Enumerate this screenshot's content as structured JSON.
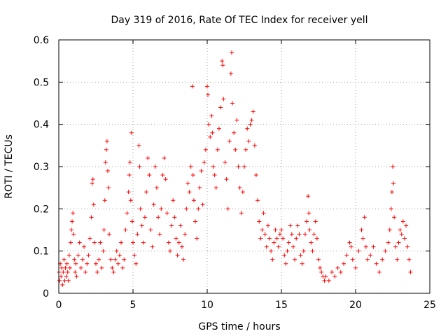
{
  "chart_data": {
    "type": "scatter",
    "title": "Day 319 of 2016, Rate Of TEC Index for receiver yell",
    "xlabel": "GPS time / hours",
    "ylabel": "ROTI / TECUs",
    "xlim": [
      0,
      25
    ],
    "ylim": [
      0,
      0.6
    ],
    "xticks": [
      0,
      5,
      10,
      15,
      20,
      25
    ],
    "yticks": [
      0,
      0.1,
      0.2,
      0.3,
      0.4,
      0.5,
      0.6
    ],
    "xtick_labels": [
      "0",
      "5",
      "10",
      "15",
      "20",
      "25"
    ],
    "ytick_labels": [
      "0",
      "0.1",
      "0.2",
      "0.3",
      "0.4",
      "0.5",
      "0.6"
    ],
    "grid": true,
    "marker": "+",
    "color": "#ff0000",
    "series": [
      {
        "name": "ROTI",
        "points": [
          [
            0.0,
            0.05
          ],
          [
            0.05,
            0.03
          ],
          [
            0.1,
            0.07
          ],
          [
            0.15,
            0.04
          ],
          [
            0.2,
            0.06
          ],
          [
            0.25,
            0.02
          ],
          [
            0.3,
            0.05
          ],
          [
            0.35,
            0.08
          ],
          [
            0.4,
            0.03
          ],
          [
            0.45,
            0.06
          ],
          [
            0.5,
            0.04
          ],
          [
            0.55,
            0.07
          ],
          [
            0.6,
            0.05
          ],
          [
            0.65,
            0.03
          ],
          [
            0.7,
            0.09
          ],
          [
            0.75,
            0.06
          ],
          [
            0.8,
            0.12
          ],
          [
            0.85,
            0.15
          ],
          [
            0.9,
            0.17
          ],
          [
            0.95,
            0.19
          ],
          [
            1.0,
            0.14
          ],
          [
            1.05,
            0.08
          ],
          [
            1.1,
            0.05
          ],
          [
            1.15,
            0.07
          ],
          [
            1.2,
            0.04
          ],
          [
            1.3,
            0.09
          ],
          [
            1.4,
            0.12
          ],
          [
            1.5,
            0.06
          ],
          [
            1.6,
            0.08
          ],
          [
            1.7,
            0.11
          ],
          [
            1.8,
            0.05
          ],
          [
            1.9,
            0.07
          ],
          [
            2.0,
            0.09
          ],
          [
            2.1,
            0.13
          ],
          [
            2.2,
            0.18
          ],
          [
            2.25,
            0.26
          ],
          [
            2.3,
            0.27
          ],
          [
            2.35,
            0.21
          ],
          [
            2.4,
            0.12
          ],
          [
            2.5,
            0.07
          ],
          [
            2.6,
            0.05
          ],
          [
            2.7,
            0.08
          ],
          [
            2.8,
            0.12
          ],
          [
            2.9,
            0.06
          ],
          [
            3.0,
            0.1
          ],
          [
            3.05,
            0.15
          ],
          [
            3.1,
            0.22
          ],
          [
            3.15,
            0.31
          ],
          [
            3.2,
            0.34
          ],
          [
            3.25,
            0.36
          ],
          [
            3.3,
            0.29
          ],
          [
            3.35,
            0.25
          ],
          [
            3.4,
            0.14
          ],
          [
            3.5,
            0.08
          ],
          [
            3.6,
            0.06
          ],
          [
            3.7,
            0.05
          ],
          [
            3.8,
            0.08
          ],
          [
            3.9,
            0.1
          ],
          [
            4.0,
            0.07
          ],
          [
            4.1,
            0.09
          ],
          [
            4.2,
            0.12
          ],
          [
            4.3,
            0.06
          ],
          [
            4.4,
            0.08
          ],
          [
            4.5,
            0.15
          ],
          [
            4.6,
            0.19
          ],
          [
            4.7,
            0.24
          ],
          [
            4.75,
            0.28
          ],
          [
            4.8,
            0.31
          ],
          [
            4.85,
            0.22
          ],
          [
            4.9,
            0.38
          ],
          [
            4.95,
            0.17
          ],
          [
            5.0,
            0.12
          ],
          [
            5.1,
            0.09
          ],
          [
            5.2,
            0.07
          ],
          [
            5.3,
            0.14
          ],
          [
            5.4,
            0.35
          ],
          [
            5.45,
            0.3
          ],
          [
            5.5,
            0.2
          ],
          [
            5.6,
            0.16
          ],
          [
            5.7,
            0.12
          ],
          [
            5.8,
            0.18
          ],
          [
            5.9,
            0.24
          ],
          [
            6.0,
            0.32
          ],
          [
            6.1,
            0.28
          ],
          [
            6.2,
            0.15
          ],
          [
            6.3,
            0.11
          ],
          [
            6.4,
            0.21
          ],
          [
            6.5,
            0.3
          ],
          [
            6.6,
            0.25
          ],
          [
            6.7,
            0.18
          ],
          [
            6.8,
            0.14
          ],
          [
            6.9,
            0.2
          ],
          [
            7.0,
            0.28
          ],
          [
            7.1,
            0.32
          ],
          [
            7.2,
            0.27
          ],
          [
            7.3,
            0.19
          ],
          [
            7.4,
            0.12
          ],
          [
            7.5,
            0.1
          ],
          [
            7.6,
            0.16
          ],
          [
            7.7,
            0.22
          ],
          [
            7.8,
            0.18
          ],
          [
            7.9,
            0.13
          ],
          [
            8.0,
            0.09
          ],
          [
            8.1,
            0.12
          ],
          [
            8.2,
            0.16
          ],
          [
            8.3,
            0.11
          ],
          [
            8.4,
            0.08
          ],
          [
            8.5,
            0.14
          ],
          [
            8.6,
            0.2
          ],
          [
            8.7,
            0.26
          ],
          [
            8.8,
            0.24
          ],
          [
            8.9,
            0.3
          ],
          [
            9.0,
            0.49
          ],
          [
            9.05,
            0.28
          ],
          [
            9.1,
            0.22
          ],
          [
            9.2,
            0.17
          ],
          [
            9.3,
            0.13
          ],
          [
            9.4,
            0.2
          ],
          [
            9.5,
            0.25
          ],
          [
            9.6,
            0.29
          ],
          [
            9.7,
            0.21
          ],
          [
            9.8,
            0.31
          ],
          [
            9.9,
            0.34
          ],
          [
            10.0,
            0.49
          ],
          [
            10.05,
            0.47
          ],
          [
            10.1,
            0.4
          ],
          [
            10.2,
            0.37
          ],
          [
            10.3,
            0.42
          ],
          [
            10.35,
            0.38
          ],
          [
            10.4,
            0.3
          ],
          [
            10.5,
            0.28
          ],
          [
            10.6,
            0.25
          ],
          [
            10.7,
            0.34
          ],
          [
            10.8,
            0.39
          ],
          [
            10.9,
            0.44
          ],
          [
            11.0,
            0.55
          ],
          [
            11.05,
            0.54
          ],
          [
            11.1,
            0.46
          ],
          [
            11.2,
            0.31
          ],
          [
            11.3,
            0.27
          ],
          [
            11.4,
            0.2
          ],
          [
            11.5,
            0.36
          ],
          [
            11.6,
            0.52
          ],
          [
            11.65,
            0.57
          ],
          [
            11.7,
            0.45
          ],
          [
            11.8,
            0.38
          ],
          [
            11.9,
            0.34
          ],
          [
            12.0,
            0.41
          ],
          [
            12.1,
            0.3
          ],
          [
            12.2,
            0.25
          ],
          [
            12.3,
            0.19
          ],
          [
            12.4,
            0.24
          ],
          [
            12.5,
            0.3
          ],
          [
            12.6,
            0.34
          ],
          [
            12.7,
            0.39
          ],
          [
            12.8,
            0.36
          ],
          [
            12.9,
            0.4
          ],
          [
            13.0,
            0.41
          ],
          [
            13.1,
            0.43
          ],
          [
            13.2,
            0.35
          ],
          [
            13.3,
            0.28
          ],
          [
            13.4,
            0.22
          ],
          [
            13.5,
            0.17
          ],
          [
            13.6,
            0.13
          ],
          [
            13.7,
            0.15
          ],
          [
            13.8,
            0.19
          ],
          [
            13.9,
            0.14
          ],
          [
            14.0,
            0.11
          ],
          [
            14.1,
            0.16
          ],
          [
            14.2,
            0.13
          ],
          [
            14.3,
            0.1
          ],
          [
            14.4,
            0.08
          ],
          [
            14.5,
            0.12
          ],
          [
            14.6,
            0.15
          ],
          [
            14.7,
            0.13
          ],
          [
            14.8,
            0.11
          ],
          [
            14.9,
            0.14
          ],
          [
            15.0,
            0.15
          ],
          [
            15.1,
            0.13
          ],
          [
            15.2,
            0.09
          ],
          [
            15.3,
            0.07
          ],
          [
            15.4,
            0.1
          ],
          [
            15.5,
            0.12
          ],
          [
            15.6,
            0.16
          ],
          [
            15.7,
            0.14
          ],
          [
            15.8,
            0.11
          ],
          [
            15.9,
            0.08
          ],
          [
            16.0,
            0.13
          ],
          [
            16.1,
            0.16
          ],
          [
            16.2,
            0.14
          ],
          [
            16.3,
            0.09
          ],
          [
            16.4,
            0.07
          ],
          [
            16.5,
            0.1
          ],
          [
            16.6,
            0.14
          ],
          [
            16.7,
            0.17
          ],
          [
            16.8,
            0.23
          ],
          [
            16.85,
            0.19
          ],
          [
            16.9,
            0.15
          ],
          [
            17.0,
            0.12
          ],
          [
            17.1,
            0.1
          ],
          [
            17.2,
            0.14
          ],
          [
            17.3,
            0.17
          ],
          [
            17.4,
            0.13
          ],
          [
            17.5,
            0.08
          ],
          [
            17.6,
            0.06
          ],
          [
            17.7,
            0.05
          ],
          [
            17.8,
            0.04
          ],
          [
            17.9,
            0.03
          ],
          [
            18.0,
            0.04
          ],
          [
            18.2,
            0.03
          ],
          [
            18.4,
            0.05
          ],
          [
            18.6,
            0.04
          ],
          [
            18.8,
            0.06
          ],
          [
            19.0,
            0.05
          ],
          [
            19.2,
            0.07
          ],
          [
            19.4,
            0.09
          ],
          [
            19.6,
            0.12
          ],
          [
            19.7,
            0.11
          ],
          [
            19.8,
            0.08
          ],
          [
            20.0,
            0.06
          ],
          [
            20.2,
            0.1
          ],
          [
            20.4,
            0.15
          ],
          [
            20.5,
            0.13
          ],
          [
            20.6,
            0.18
          ],
          [
            20.7,
            0.11
          ],
          [
            20.8,
            0.08
          ],
          [
            21.0,
            0.09
          ],
          [
            21.2,
            0.11
          ],
          [
            21.4,
            0.07
          ],
          [
            21.6,
            0.05
          ],
          [
            21.8,
            0.08
          ],
          [
            22.0,
            0.1
          ],
          [
            22.2,
            0.12
          ],
          [
            22.3,
            0.15
          ],
          [
            22.4,
            0.2
          ],
          [
            22.45,
            0.24
          ],
          [
            22.5,
            0.3
          ],
          [
            22.55,
            0.26
          ],
          [
            22.6,
            0.18
          ],
          [
            22.7,
            0.11
          ],
          [
            22.8,
            0.08
          ],
          [
            22.9,
            0.12
          ],
          [
            23.0,
            0.15
          ],
          [
            23.1,
            0.14
          ],
          [
            23.2,
            0.17
          ],
          [
            23.3,
            0.13
          ],
          [
            23.4,
            0.16
          ],
          [
            23.5,
            0.11
          ],
          [
            23.6,
            0.08
          ],
          [
            23.7,
            0.05
          ]
        ]
      }
    ]
  }
}
